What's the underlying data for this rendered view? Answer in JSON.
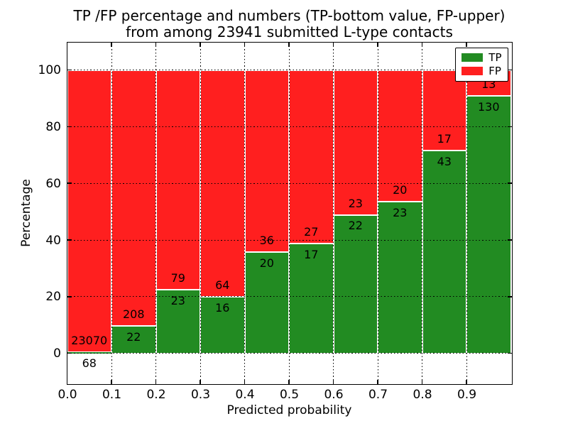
{
  "chart_data": {
    "type": "bar",
    "stacked": true,
    "title_line1": "TP /FP percentage and numbers (TP-bottom value, FP-upper)",
    "title_line2": "from among 23941 submitted L-type contacts",
    "xlabel": "Predicted probability",
    "ylabel": "Percentage",
    "xlim": [
      0.0,
      1.0
    ],
    "ylim": [
      -10.5,
      109.8
    ],
    "bin_width": 0.1,
    "x_tick_labels": [
      "0.0",
      "0.1",
      "0.2",
      "0.3",
      "0.4",
      "0.5",
      "0.6",
      "0.7",
      "0.8",
      "0.9"
    ],
    "y_ticks": [
      0,
      20,
      40,
      60,
      80,
      100
    ],
    "grid": "dotted",
    "legend_position": "upper right",
    "series": [
      {
        "name": "TP",
        "color": "#228b22",
        "counts": [
          68,
          22,
          23,
          16,
          20,
          17,
          22,
          23,
          43,
          130
        ],
        "percentages": [
          0.29,
          9.57,
          22.55,
          20.0,
          35.71,
          38.64,
          48.89,
          53.49,
          71.67,
          90.91
        ]
      },
      {
        "name": "FP",
        "color": "#ff1f1f",
        "counts": [
          23070,
          208,
          79,
          64,
          36,
          27,
          23,
          20,
          17,
          13
        ],
        "percentages": [
          99.71,
          90.43,
          77.45,
          80.0,
          64.29,
          61.36,
          51.11,
          46.51,
          28.33,
          9.09
        ]
      }
    ]
  }
}
